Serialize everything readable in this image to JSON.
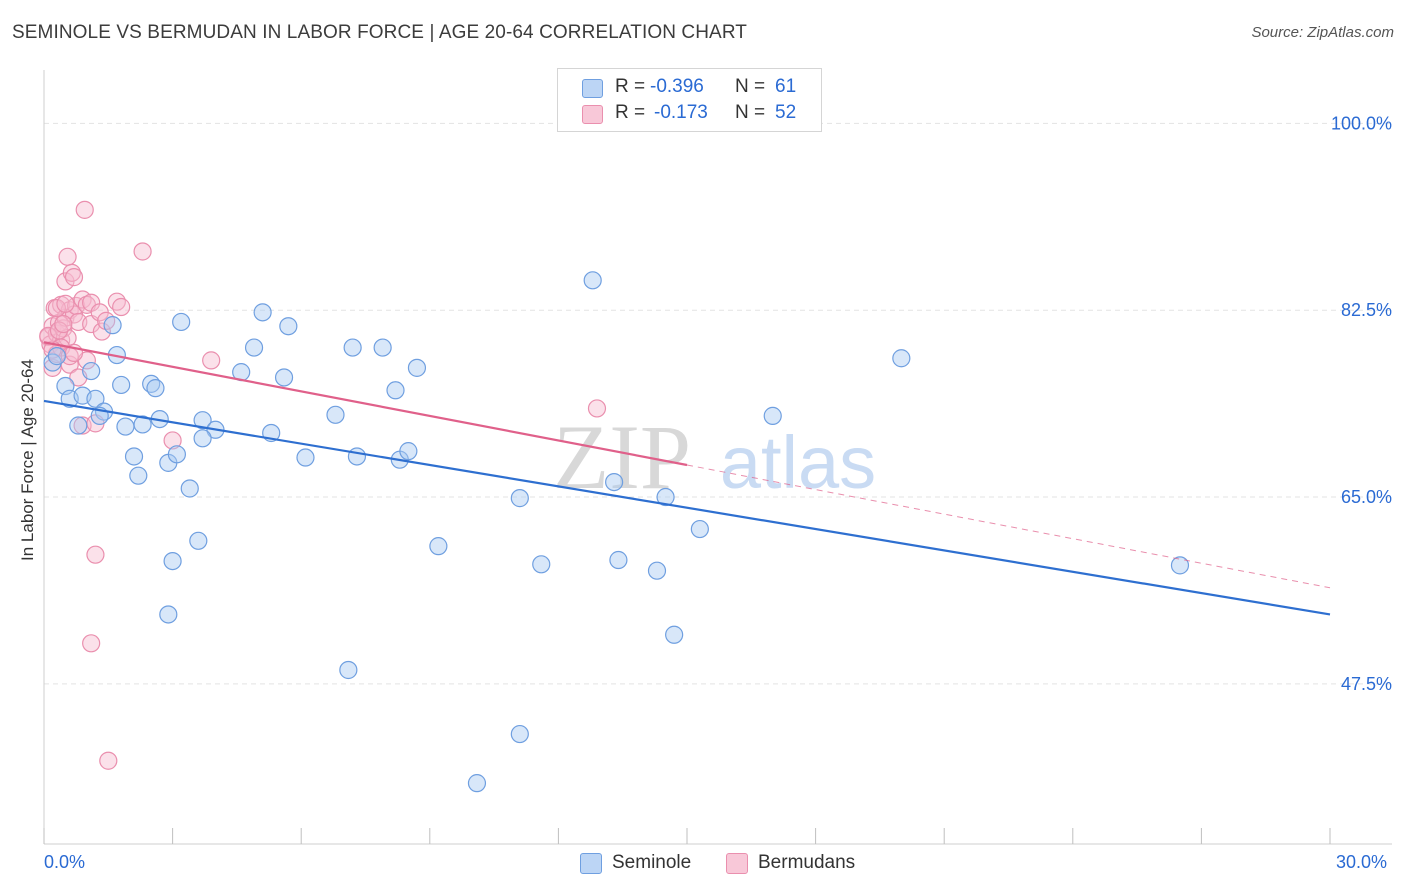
{
  "title": "SEMINOLE VS BERMUDAN IN LABOR FORCE | AGE 20-64 CORRELATION CHART",
  "source": "Source: ZipAtlas.com",
  "watermark": {
    "zip": "ZIP",
    "atlas": "atlas"
  },
  "legend": {
    "rows": [
      {
        "r_label": "R =",
        "r_value": "-0.396",
        "n_label": "N =",
        "n_value": "61"
      },
      {
        "r_label": "R =",
        "r_value": "-0.173",
        "n_label": "N =",
        "n_value": "52"
      }
    ]
  },
  "colors": {
    "seminole_fill": "#a9c9f2",
    "seminole_stroke": "#6f9fe0",
    "seminole_line": "#2e6fd0",
    "bermudan_fill": "#f6bcd0",
    "bermudan_stroke": "#ea8fae",
    "bermudan_line": "#e0608a",
    "tick_text": "#2a6ad3",
    "grid": "#e3e3e3"
  },
  "chart_data": {
    "type": "scatter",
    "title": "SEMINOLE VS BERMUDAN IN LABOR FORCE | AGE 20-64 CORRELATION CHART",
    "xlabel": "",
    "ylabel": "In Labor Force | Age 20-64",
    "xlim": [
      0,
      30
    ],
    "ylim": [
      32.5,
      105
    ],
    "x_tick_labels": [
      "0.0%",
      "30.0%"
    ],
    "y_ticks": [
      47.5,
      65.0,
      82.5,
      100.0
    ],
    "y_tick_labels": [
      "47.5%",
      "65.0%",
      "82.5%",
      "100.0%"
    ],
    "grid": true,
    "legend_position": "bottom",
    "series": [
      {
        "name": "Seminole",
        "r": -0.396,
        "n": 61,
        "trend": {
          "x": [
            0,
            30
          ],
          "y": [
            74.0,
            54.0
          ],
          "dashed_from": null
        },
        "points": [
          [
            0.2,
            77.6
          ],
          [
            0.3,
            78.2
          ],
          [
            0.5,
            75.4
          ],
          [
            0.6,
            74.2
          ],
          [
            0.8,
            71.7
          ],
          [
            0.9,
            74.5
          ],
          [
            1.1,
            76.8
          ],
          [
            1.2,
            74.2
          ],
          [
            1.4,
            73.0
          ],
          [
            1.6,
            81.1
          ],
          [
            1.7,
            78.3
          ],
          [
            1.8,
            75.5
          ],
          [
            1.9,
            71.6
          ],
          [
            2.1,
            68.8
          ],
          [
            2.2,
            67.0
          ],
          [
            2.3,
            71.8
          ],
          [
            2.5,
            75.6
          ],
          [
            2.6,
            75.2
          ],
          [
            2.7,
            72.3
          ],
          [
            2.9,
            68.2
          ],
          [
            3.0,
            59.0
          ],
          [
            3.1,
            69.0
          ],
          [
            3.2,
            81.4
          ],
          [
            3.4,
            65.8
          ],
          [
            3.6,
            60.9
          ],
          [
            3.7,
            72.2
          ],
          [
            4.0,
            71.3
          ],
          [
            4.6,
            76.7
          ],
          [
            4.9,
            79.0
          ],
          [
            5.1,
            82.3
          ],
          [
            5.3,
            71.0
          ],
          [
            5.6,
            76.2
          ],
          [
            5.7,
            81.0
          ],
          [
            6.1,
            68.7
          ],
          [
            6.8,
            72.7
          ],
          [
            7.2,
            79.0
          ],
          [
            7.3,
            68.8
          ],
          [
            7.9,
            79.0
          ],
          [
            8.2,
            75.0
          ],
          [
            8.3,
            68.5
          ],
          [
            8.5,
            69.3
          ],
          [
            8.7,
            77.1
          ],
          [
            9.2,
            60.4
          ],
          [
            11.1,
            64.9
          ],
          [
            11.6,
            58.7
          ],
          [
            12.8,
            85.3
          ],
          [
            13.3,
            66.4
          ],
          [
            13.4,
            59.1
          ],
          [
            14.3,
            58.1
          ],
          [
            14.5,
            65.0
          ],
          [
            14.7,
            52.1
          ],
          [
            15.3,
            62.0
          ],
          [
            17.0,
            72.6
          ],
          [
            20.0,
            78.0
          ],
          [
            26.5,
            58.6
          ],
          [
            2.9,
            54.0
          ],
          [
            7.1,
            48.8
          ],
          [
            11.1,
            42.8
          ],
          [
            10.1,
            38.2
          ],
          [
            1.3,
            72.6
          ],
          [
            3.7,
            70.5
          ]
        ]
      },
      {
        "name": "Bermudans",
        "r": -0.173,
        "n": 52,
        "trend": {
          "x": [
            0,
            30
          ],
          "y": [
            79.5,
            56.5
          ],
          "dashed_from": 15.0
        },
        "points": [
          [
            0.1,
            80.0
          ],
          [
            0.15,
            79.3
          ],
          [
            0.2,
            81.0
          ],
          [
            0.2,
            77.1
          ],
          [
            0.25,
            82.7
          ],
          [
            0.3,
            80.3
          ],
          [
            0.3,
            78.4
          ],
          [
            0.35,
            81.3
          ],
          [
            0.4,
            83.0
          ],
          [
            0.4,
            79.7
          ],
          [
            0.45,
            80.8
          ],
          [
            0.5,
            81.8
          ],
          [
            0.5,
            85.2
          ],
          [
            0.55,
            87.5
          ],
          [
            0.55,
            79.9
          ],
          [
            0.6,
            82.5
          ],
          [
            0.6,
            77.4
          ],
          [
            0.65,
            86.0
          ],
          [
            0.7,
            82.1
          ],
          [
            0.7,
            85.6
          ],
          [
            0.75,
            82.9
          ],
          [
            0.8,
            81.4
          ],
          [
            0.8,
            76.2
          ],
          [
            0.9,
            83.5
          ],
          [
            0.9,
            71.7
          ],
          [
            0.95,
            91.9
          ],
          [
            1.0,
            83.0
          ],
          [
            1.0,
            77.8
          ],
          [
            1.1,
            83.2
          ],
          [
            1.1,
            81.2
          ],
          [
            1.2,
            71.9
          ],
          [
            1.3,
            82.3
          ],
          [
            1.35,
            80.5
          ],
          [
            1.45,
            81.5
          ],
          [
            1.7,
            83.3
          ],
          [
            1.8,
            82.8
          ],
          [
            2.3,
            88.0
          ],
          [
            3.0,
            70.3
          ],
          [
            3.9,
            77.8
          ],
          [
            12.9,
            73.3
          ],
          [
            0.3,
            82.7
          ],
          [
            0.4,
            79.0
          ],
          [
            0.5,
            83.1
          ],
          [
            0.6,
            78.2
          ],
          [
            0.2,
            78.8
          ],
          [
            0.1,
            80.1
          ],
          [
            1.2,
            59.6
          ],
          [
            1.1,
            51.3
          ],
          [
            1.5,
            40.3
          ],
          [
            0.7,
            78.5
          ],
          [
            0.35,
            80.6
          ],
          [
            0.45,
            81.2
          ]
        ]
      }
    ]
  }
}
